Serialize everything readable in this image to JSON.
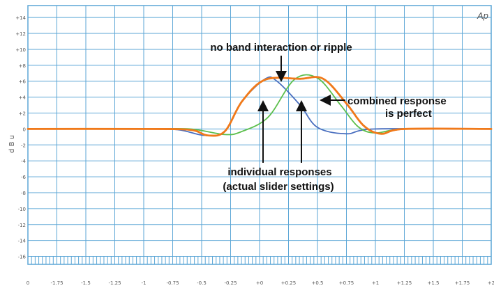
{
  "chart_data": {
    "type": "line",
    "title": "",
    "corner_label": "Ap",
    "xlabel": "",
    "ylabel": "d B u",
    "grid": true,
    "xlim": [
      0,
      16
    ],
    "ylim": [
      -17.0,
      15.5
    ],
    "x_tick_labels": [
      "0",
      "-1.75",
      "-1.5",
      "-1.25",
      "-1",
      "-0.75",
      "-0.5",
      "-0.25",
      "+0",
      "+0.25",
      "+0.5",
      "+0.75",
      "+1",
      "+1.25",
      "+1.5",
      "+1.75",
      "+2"
    ],
    "y_tick_labels": [
      "+14",
      "+12",
      "+10",
      "+8",
      "+6",
      "+4",
      "+2",
      "0",
      "-2",
      "-4",
      "-6",
      "-8",
      "-10",
      "-12",
      "-14",
      "-16"
    ],
    "series": [
      {
        "color": "#4a6fbf",
        "x": [
          0,
          4,
          5.2,
          6.1,
          6.8,
          7.4,
          8.2,
          8.6,
          9.4,
          10,
          11,
          12,
          16
        ],
        "y": [
          0,
          0,
          -0.1,
          -0.8,
          -0.3,
          3.5,
          6.3,
          6.0,
          3.0,
          0.2,
          -0.6,
          0,
          0
        ]
      },
      {
        "color": "#5cbf4c",
        "x": [
          0,
          4,
          5.6,
          6.8,
          7.4,
          8.3,
          9.2,
          10,
          10.8,
          11.4,
          12,
          13,
          16
        ],
        "y": [
          0,
          0,
          0,
          -0.7,
          -0.3,
          1.5,
          6.2,
          6.4,
          3.0,
          0.3,
          -0.5,
          0,
          0
        ]
      },
      {
        "color": "#d94a4a",
        "x": [
          0,
          4,
          5.6,
          6.2,
          6.8,
          7.4,
          8.2,
          9.4,
          10.2,
          11.0,
          11.6,
          12.2,
          13,
          16
        ],
        "y": [
          0,
          0,
          -0.1,
          -0.8,
          -0.3,
          3.5,
          6.2,
          6.3,
          6.3,
          3.2,
          0.4,
          -0.6,
          0,
          0
        ]
      },
      {
        "color": "#f07a1a",
        "x": [
          0,
          4,
          5.6,
          6.2,
          6.8,
          7.4,
          8.2,
          9.4,
          10.2,
          11.0,
          11.6,
          12.2,
          13,
          16
        ],
        "y": [
          0,
          0,
          -0.1,
          -0.8,
          -0.3,
          3.5,
          6.2,
          6.3,
          6.3,
          3.2,
          0.4,
          -0.6,
          0,
          0
        ]
      }
    ],
    "annotations": [
      {
        "name": "no-band-interaction",
        "lines": [
          "no band interaction or ripple"
        ]
      },
      {
        "name": "combined-response",
        "lines": [
          "combined response",
          "is perfect"
        ]
      },
      {
        "name": "individual-responses",
        "lines": [
          "individual responses",
          "(actual slider settings)"
        ]
      }
    ]
  }
}
